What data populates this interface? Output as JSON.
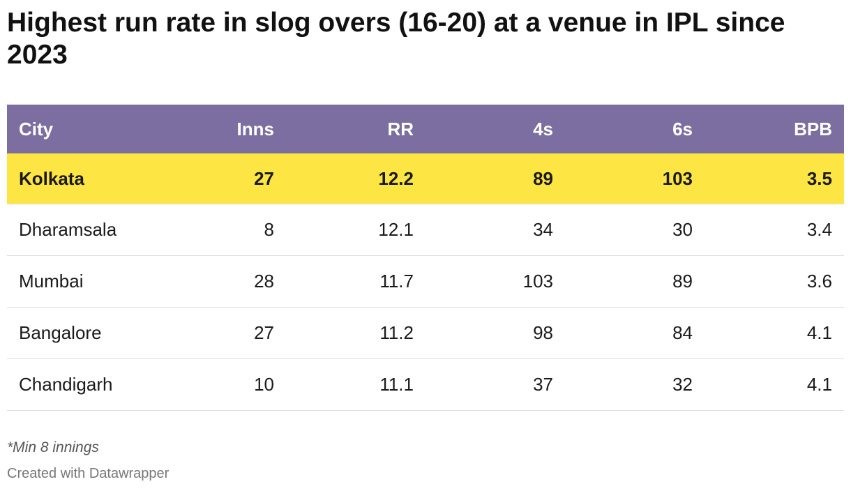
{
  "title": "Highest run rate in slog overs (16-20) at a venue in IPL since 2023",
  "note": "*Min 8 innings",
  "credit": "Created with Datawrapper",
  "colors": {
    "header_bg": "#7c6ea1",
    "highlight_bg": "#fde644"
  },
  "chart_data": {
    "type": "table",
    "columns": [
      "City",
      "Inns",
      "RR",
      "4s",
      "6s",
      "BPB"
    ],
    "rows": [
      [
        "Kolkata",
        "27",
        "12.2",
        "89",
        "103",
        "3.5"
      ],
      [
        "Dharamsala",
        "8",
        "12.1",
        "34",
        "30",
        "3.4"
      ],
      [
        "Mumbai",
        "28",
        "11.7",
        "103",
        "89",
        "3.6"
      ],
      [
        "Bangalore",
        "27",
        "11.2",
        "98",
        "84",
        "4.1"
      ],
      [
        "Chandigarh",
        "10",
        "11.1",
        "37",
        "32",
        "4.1"
      ]
    ],
    "highlighted_row": 0
  }
}
